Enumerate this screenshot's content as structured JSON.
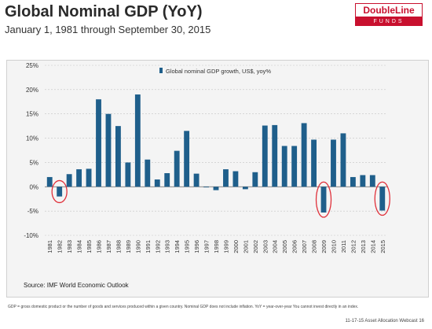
{
  "header": {
    "title": "Global Nominal GDP (YoY)",
    "subtitle": "January 1, 1981 through September 30, 2015"
  },
  "logo": {
    "top": "DoubleLine",
    "bottom": "FUNDS"
  },
  "source": "Source: IMF World Economic Outlook",
  "footnote": "GDP = gross domestic product or the number of goods and services produced within a given country. Nominal GDP does not include inflation. YoY = year-over-year You cannot invest directly in an index.",
  "footer": "11-17-15 Asset Allocation Webcast 16",
  "colors": {
    "bar": "#1f5f8b",
    "circle": "#e0303a",
    "brand": "#c8102e"
  },
  "chart_data": {
    "type": "bar",
    "title": "",
    "categories": [
      "1981",
      "1982",
      "1983",
      "1984",
      "1985",
      "1986",
      "1987",
      "1988",
      "1989",
      "1990",
      "1991",
      "1992",
      "1993",
      "1994",
      "1995",
      "1996",
      "1997",
      "1998",
      "1999",
      "2000",
      "2001",
      "2002",
      "2003",
      "2004",
      "2005",
      "2006",
      "2007",
      "2008",
      "2009",
      "2010",
      "2011",
      "2012",
      "2013",
      "2014",
      "2015"
    ],
    "series": [
      {
        "name": "Global nominal GDP growth, US$, yoy%",
        "values": [
          2.0,
          -2.0,
          2.6,
          3.6,
          3.7,
          18.0,
          15.0,
          12.5,
          5.0,
          19.0,
          5.6,
          1.5,
          2.8,
          7.4,
          11.5,
          2.7,
          -0.1,
          -0.7,
          3.6,
          3.2,
          -0.5,
          3.0,
          12.6,
          12.7,
          8.4,
          8.4,
          13.1,
          9.7,
          -5.3,
          9.7,
          11.0,
          2.0,
          2.4,
          2.4,
          -4.9
        ]
      }
    ],
    "yticks": [
      "25%",
      "20%",
      "15%",
      "10%",
      "5%",
      "0%",
      "-5%",
      "-10%"
    ],
    "ylim": [
      -10,
      25
    ],
    "grid": true,
    "legend": "top",
    "highlighted": [
      "1982",
      "2009",
      "2015"
    ]
  }
}
